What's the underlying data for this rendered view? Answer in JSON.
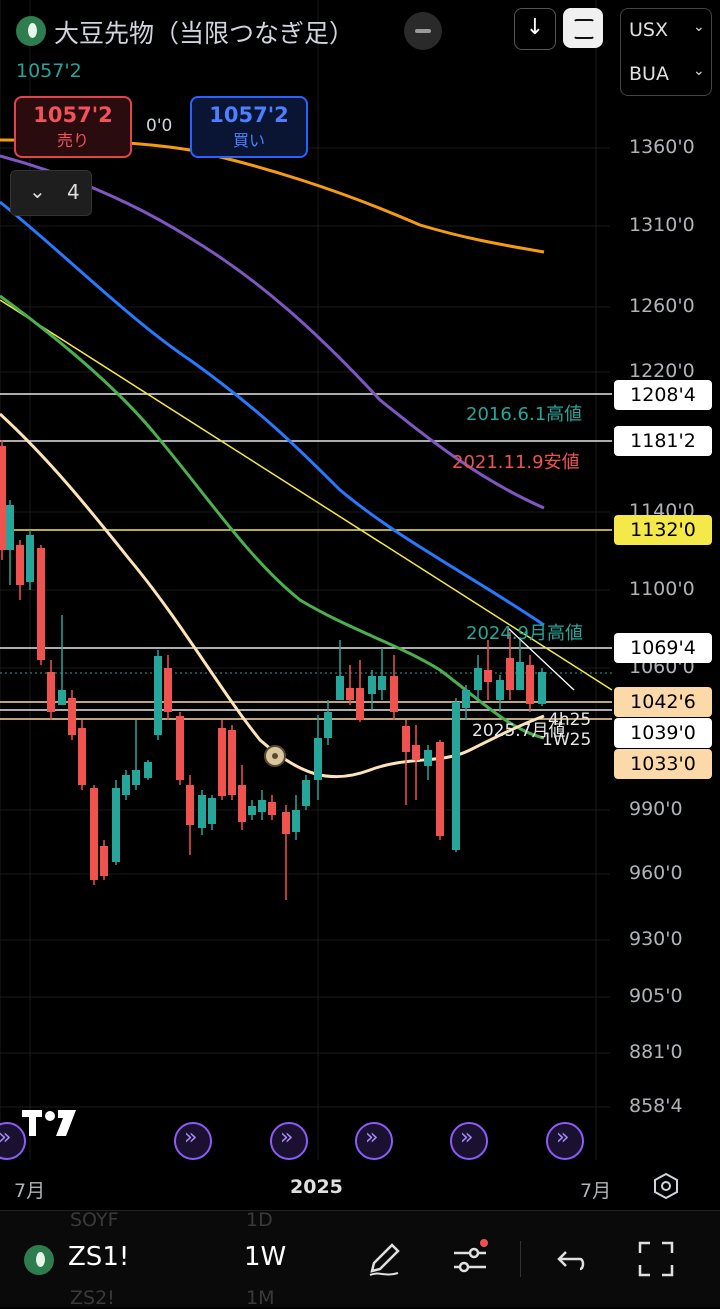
{
  "header": {
    "title": "大豆先物（当限つなぎ足）",
    "last_price": "1057'2",
    "currency": "USX",
    "exchange": "BUA"
  },
  "trade": {
    "sell_price": "1057'2",
    "sell_label": "売り",
    "spread": "0'0",
    "buy_price": "1057'2",
    "buy_label": "買い"
  },
  "indicators": {
    "count": "4"
  },
  "price_axis": {
    "labels": [
      "1360'0",
      "1310'0",
      "1260'0",
      "1220'0",
      "1140'0",
      "1100'0",
      "1060'0",
      "990'0",
      "960'0",
      "930'0",
      "905'0",
      "881'0",
      "858'4"
    ]
  },
  "levels": [
    {
      "value": "1208'4",
      "color": "#ffffff"
    },
    {
      "value": "1181'2",
      "color": "#ffffff"
    },
    {
      "value": "1132'0",
      "color": "#f5e94a"
    },
    {
      "value": "1069'4",
      "color": "#ffffff"
    },
    {
      "value": "1042'6",
      "color": "#fcd9a8"
    },
    {
      "value": "1039'0",
      "color": "#ffffff"
    },
    {
      "value": "1033'0",
      "color": "#fcd9a8"
    }
  ],
  "notes": {
    "high_2016": "2016.6.1高値",
    "low_2021": "2021.11.9安値",
    "high_2024_9": "2024.9月高値",
    "label_2025": "2025.7月値",
    "label_4h25": "4h25",
    "label_1w25": "1W25"
  },
  "time_axis": {
    "left": "7月",
    "center": "2025",
    "right": "7月"
  },
  "bottom_bar": {
    "symbol": "ZS1!",
    "interval": "1W",
    "ghost_symbol_1": "SOYF",
    "ghost_interval_1": "1D",
    "ghost_symbol_2": "ZS2!",
    "ghost_interval_2": "1M"
  },
  "icons": [
    "soybean-logo-icon",
    "minus-icon",
    "download-arrow-icon",
    "frame-icon",
    "chevron-down-icon",
    "replay-icon",
    "tradingview-logo-icon",
    "settings-hexagon-icon",
    "pen-icon",
    "sliders-icon",
    "undo-icon",
    "fullscreen-icon"
  ],
  "colors": {
    "bull": "#26a69a",
    "bear": "#ef5350",
    "ma_orange": "#f39c12",
    "ma_purple": "#7e57c2",
    "ma_blue": "#2979ff",
    "ma_green": "#4caf50",
    "ma_cream": "#fce4b8",
    "trend_yellow": "#f5e94a"
  }
}
